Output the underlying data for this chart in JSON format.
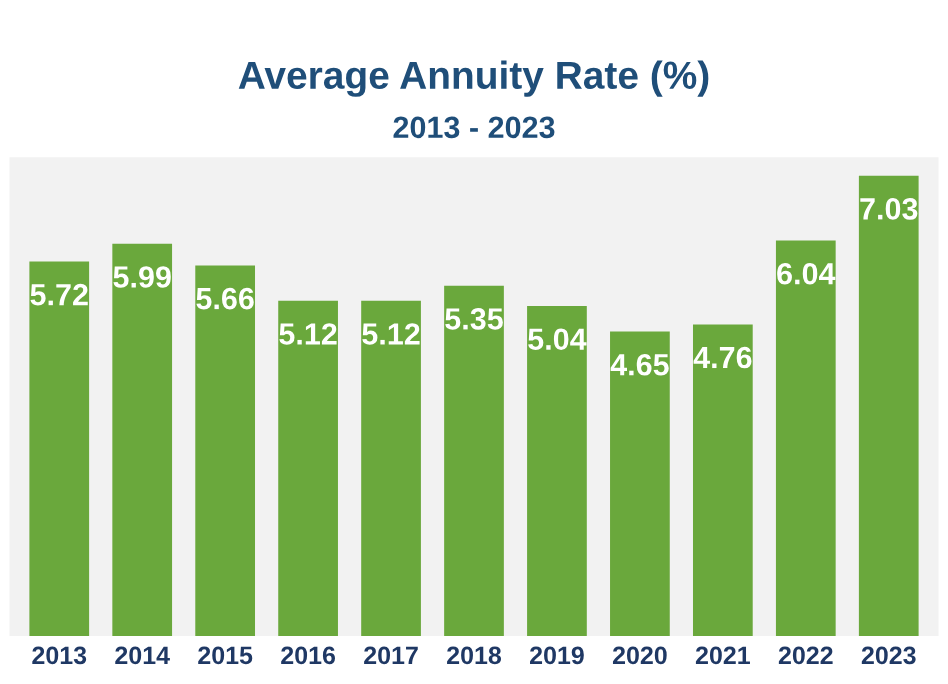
{
  "chart_data": {
    "type": "bar",
    "title": "Average Annuity Rate (%)",
    "subtitle": "2013 - 2023",
    "categories": [
      "2013",
      "2014",
      "2015",
      "2016",
      "2017",
      "2018",
      "2019",
      "2020",
      "2021",
      "2022",
      "2023"
    ],
    "values": [
      5.72,
      5.99,
      5.66,
      5.12,
      5.12,
      5.35,
      5.04,
      4.65,
      4.76,
      6.04,
      7.03
    ],
    "color": "#6aa83c",
    "data_labels": true,
    "grid": false,
    "legend": false
  }
}
